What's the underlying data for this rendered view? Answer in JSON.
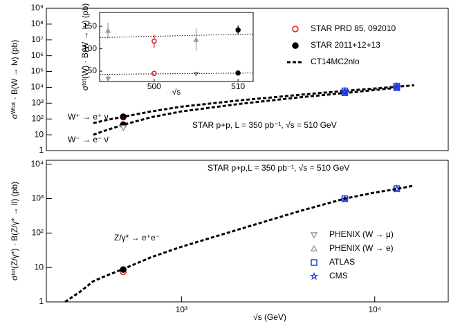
{
  "chart_data": [
    {
      "type": "scatter",
      "xlog": true,
      "ylog": true,
      "xlim": [
        200,
        24000
      ],
      "ylim": [
        1,
        1000000000
      ],
      "yticks": [
        1,
        10,
        {
          "value": 100,
          "label": "10²"
        },
        {
          "value": 1000,
          "label": "10³"
        },
        {
          "value": 10000,
          "label": "10⁴"
        },
        {
          "value": 100000,
          "label": "10⁵"
        },
        {
          "value": 1000000,
          "label": "10⁶"
        },
        {
          "value": 10000000,
          "label": "10⁷"
        },
        {
          "value": 100000000,
          "label": "10⁸"
        },
        {
          "value": 1000000000,
          "label": "10⁹"
        }
      ],
      "y_label": "σᵂᵗᵒᵗ · B(W → lν) (pb)",
      "annotations": [
        "W⁺ → e⁺ ν",
        "W⁻ → e⁻ ν̄",
        "STAR p+p, L = 350 pb⁻¹, √s = 510 GeV"
      ],
      "legend": "upper right",
      "series": [
        {
          "name": "STAR PRD 85, 092010",
          "marker": "circle-open",
          "color": "#e8141b",
          "x": [
            500,
            500
          ],
          "values": [
            132,
            45
          ]
        },
        {
          "name": "STAR 2011+12+13",
          "marker": "circle",
          "color": "#000000",
          "x": [
            500,
            500
          ],
          "values": [
            140,
            41
          ]
        },
        {
          "name": "CT14MC2nlo",
          "marker": "dash",
          "color": "#000000",
          "x": [
            350,
            400,
            500,
            700,
            1000,
            2000,
            4000,
            7000,
            10000,
            13000,
            16000
          ],
          "values": [
            55,
            80,
            140,
            300,
            600,
            1500,
            3300,
            6000,
            8500,
            11000,
            13500
          ]
        },
        {
          "marker": "dash",
          "color": "#000000",
          "x": [
            350,
            400,
            500,
            700,
            1000,
            2000,
            4000,
            7000,
            10000,
            13000
          ],
          "values": [
            10,
            18,
            43,
            130,
            300,
            900,
            2300,
            4400,
            6800,
            9500
          ]
        },
        {
          "marker": "square-open",
          "color": "#1f3fe0",
          "x": [
            7000,
            7000,
            13000,
            13000
          ],
          "values": [
            6000,
            4600,
            12000,
            9500
          ]
        },
        {
          "marker": "star",
          "color": "#1f3fe0",
          "x": [
            7000,
            7000,
            13000,
            13000
          ],
          "values": [
            5900,
            4500,
            11800,
            9300
          ]
        },
        {
          "marker": "triangle-down-open",
          "color": "#888888",
          "x": [
            500
          ],
          "values": [
            28
          ]
        }
      ]
    },
    {
      "type": "scatter",
      "xlog": true,
      "ylog": true,
      "xlim": [
        200,
        24000
      ],
      "ylim": [
        1,
        13000
      ],
      "xticks": [
        {
          "value": 1000,
          "label": "10³"
        },
        {
          "value": 10000,
          "label": "10⁴"
        }
      ],
      "yticks": [
        1,
        10,
        {
          "value": 100,
          "label": "10²"
        },
        {
          "value": 1000,
          "label": "10³"
        },
        {
          "value": 10000,
          "label": "10⁴"
        }
      ],
      "x_label": "√s (GeV)",
      "y_label": "σᵗᵒᵗ(Z/γ*) · B(Z/γ* → ll) (pb)",
      "annotations": [
        "STAR p+p,L = 350 pb⁻¹, √s = 510 GeV",
        "Z/γ* → e⁺e⁻"
      ],
      "legend": "lower right",
      "series": [
        {
          "name": "PHENIX (W → μ)",
          "marker": "triangle-down-open",
          "color": "#888888",
          "x": [],
          "values": []
        },
        {
          "name": "PHENIX (W → e)",
          "marker": "triangle-up-open",
          "color": "#888888",
          "x": [],
          "values": []
        },
        {
          "name": "ATLAS",
          "marker": "square-open",
          "color": "#1f3fe0",
          "x": [
            7000,
            13000
          ],
          "values": [
            1000,
            1950
          ]
        },
        {
          "name": "CMS",
          "marker": "star",
          "color": "#1f3fe0",
          "x": [
            7000,
            13000
          ],
          "values": [
            980,
            1900
          ]
        },
        {
          "marker": "circle-open",
          "color": "#e8141b",
          "x": [
            500
          ],
          "values": [
            7.5
          ]
        },
        {
          "marker": "circle",
          "color": "#000000",
          "x": [
            500
          ],
          "values": [
            8.7
          ]
        },
        {
          "marker": "dash",
          "color": "#000000",
          "x": [
            250,
            300,
            350,
            400,
            500,
            700,
            1000,
            2000,
            4000,
            7000,
            10000,
            13000,
            16000
          ],
          "values": [
            1,
            2,
            4,
            5.5,
            9,
            20,
            40,
            130,
            420,
            1000,
            1500,
            1900,
            2400
          ]
        }
      ]
    },
    {
      "type": "scatter",
      "xlim": [
        493.5,
        511.8
      ],
      "ylim": [
        27,
        181
      ],
      "xticks": [
        500,
        510
      ],
      "yticks": [
        50,
        100,
        150
      ],
      "x_label": "√s",
      "y_label": "σᵗᵒᵗ(W) · B(W → lν) (pb)",
      "series": [
        {
          "marker": "triangle-up",
          "color": "#999999",
          "x": [
            494.5,
            505
          ],
          "values": [
            140,
            120
          ],
          "errors": [
            18,
            25
          ]
        },
        {
          "marker": "triangle-down",
          "color": "#999999",
          "x": [
            494.5,
            505
          ],
          "values": [
            33,
            44
          ],
          "errors": [
            8,
            5
          ]
        },
        {
          "marker": "circle-open",
          "color": "#e8141b",
          "x": [
            500,
            500
          ],
          "values": [
            117,
            45
          ],
          "errors": [
            15,
            5
          ]
        },
        {
          "marker": "circle",
          "color": "#000000",
          "x": [
            510,
            510
          ],
          "values": [
            142,
            46
          ],
          "errors": [
            10,
            3
          ]
        },
        {
          "marker": "dotted",
          "color": "#000000",
          "x": [
            493.5,
            511.8
          ],
          "values": [
            125,
            133
          ]
        },
        {
          "marker": "dotted",
          "color": "#000000",
          "x": [
            493.5,
            511.8
          ],
          "values": [
            43,
            46
          ]
        }
      ]
    }
  ]
}
